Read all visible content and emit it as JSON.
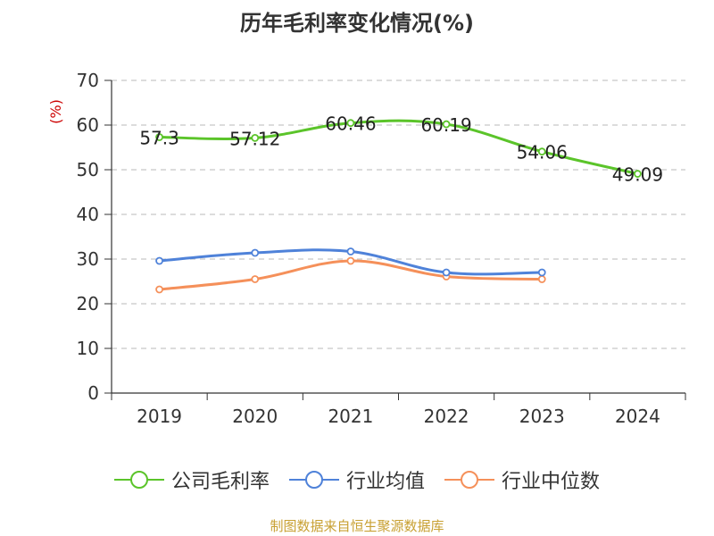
{
  "chart_data": {
    "type": "line",
    "title": "历年毛利率变化情况(%)",
    "ylabel": "(%)",
    "xlabel": "",
    "categories": [
      "2019",
      "2020",
      "2021",
      "2022",
      "2023",
      "2024"
    ],
    "ylim": [
      0,
      70
    ],
    "yticks": [
      0,
      10,
      20,
      30,
      40,
      50,
      60,
      70
    ],
    "grid": true,
    "legend_position": "bottom",
    "series": [
      {
        "name": "公司毛利率",
        "color": "#5bc42a",
        "values": [
          57.3,
          57.12,
          60.46,
          60.19,
          54.06,
          49.09
        ],
        "labels": [
          "57.3",
          "57.12",
          "60.46",
          "60.19",
          "54.06",
          "49.09"
        ]
      },
      {
        "name": "行业均值",
        "color": "#4f82d9",
        "values": [
          29.6,
          31.4,
          31.7,
          27.0,
          27.0,
          null
        ]
      },
      {
        "name": "行业中位数",
        "color": "#f5905a",
        "values": [
          23.2,
          25.5,
          29.6,
          26.1,
          25.5,
          null
        ]
      }
    ]
  },
  "source_text": "制图数据来自恒生聚源数据库"
}
